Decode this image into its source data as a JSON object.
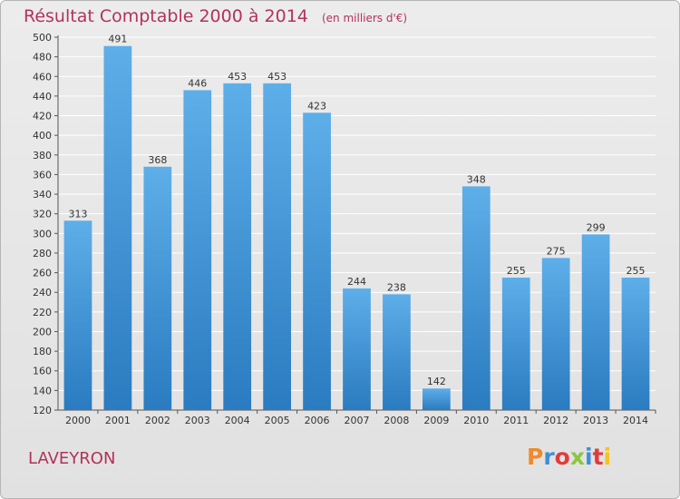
{
  "header": {
    "title": "Résultat Comptable 2000 à 2014",
    "unit": "(en milliers d'€)"
  },
  "footer": {
    "place": "LAVEYRON",
    "brand": "Proxiti"
  },
  "colors": {
    "title": "#b4325a",
    "bar_light": "#5eaee9",
    "bar_dark": "#2a7bc0",
    "grid": "#ffffff",
    "background": "#e6e6e6",
    "brand_letters": [
      "#f08a2c",
      "#3d8fd8",
      "#e23b3b",
      "#8cc63f",
      "#3d8fd8",
      "#e23b3b",
      "#f6c21c"
    ]
  },
  "chart_data": {
    "type": "bar",
    "categories": [
      "2000",
      "2001",
      "2002",
      "2003",
      "2004",
      "2005",
      "2006",
      "2007",
      "2008",
      "2009",
      "2010",
      "2011",
      "2012",
      "2013",
      "2014"
    ],
    "values": [
      313,
      491,
      368,
      446,
      453,
      453,
      423,
      244,
      238,
      142,
      348,
      255,
      275,
      299,
      255
    ],
    "title": "Résultat Comptable 2000 à 2014",
    "xlabel": "",
    "ylabel": "",
    "ylim": [
      120,
      500
    ],
    "yticks": [
      120,
      140,
      160,
      180,
      200,
      220,
      240,
      260,
      280,
      300,
      320,
      340,
      360,
      380,
      400,
      420,
      440,
      460,
      480,
      500
    ],
    "grid": true,
    "data_labels": true
  }
}
